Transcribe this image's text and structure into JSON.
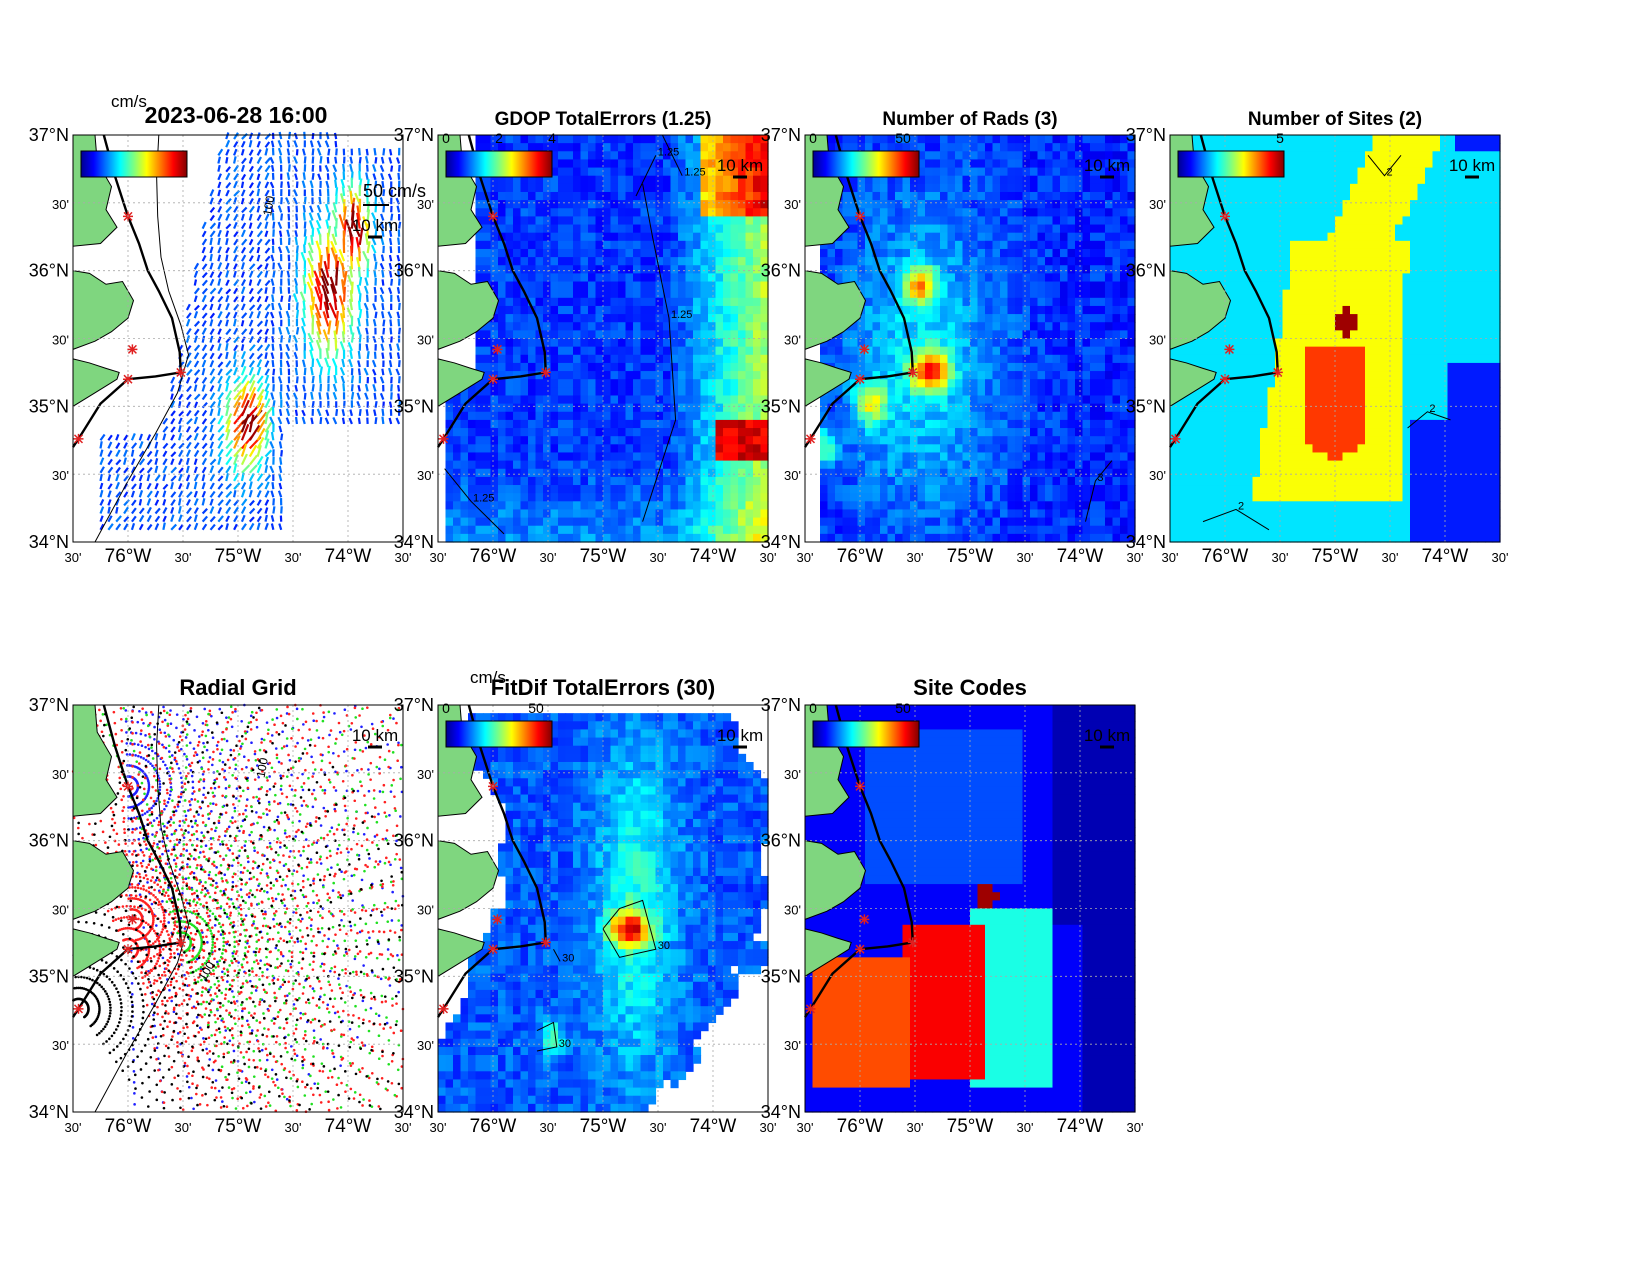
{
  "figure": {
    "timestamp": "2023-06-28 16:00",
    "unit_label": "cm/s",
    "vector_scale_label": "50 cm/s",
    "distance_scale_label": "10 km"
  },
  "axes_labels": {
    "lat": [
      "37°N",
      "30'",
      "36°N",
      "30'",
      "35°N",
      "30'",
      "34°N"
    ],
    "lon": [
      "30'",
      "76°W",
      "30'",
      "75°W",
      "30'",
      "74°W",
      "30'"
    ]
  },
  "panels": [
    {
      "id": "total-vectors",
      "title": "",
      "colorbar_ticks": [],
      "contours": [
        "100"
      ]
    },
    {
      "id": "gdop",
      "title": "GDOP TotalErrors (1.25)",
      "colorbar_ticks": [
        "0",
        "2",
        "4"
      ],
      "contours": [
        "1.25",
        "1.25",
        "1.25",
        "1.25"
      ]
    },
    {
      "id": "num-rads",
      "title": "Number of Rads (3)",
      "colorbar_ticks": [
        "0",
        "50"
      ],
      "contours": [
        "3"
      ]
    },
    {
      "id": "num-sites",
      "title": "Number of Sites (2)",
      "colorbar_ticks": [
        "5"
      ],
      "contours": [
        "2",
        "2",
        "2"
      ]
    },
    {
      "id": "radial-grid",
      "title": "Radial Grid",
      "colorbar_ticks": [],
      "contours": [
        "100",
        "100"
      ]
    },
    {
      "id": "fitdif",
      "title": "FitDif TotalErrors (30)",
      "unit": "cm/s",
      "colorbar_ticks": [
        "0",
        "50"
      ],
      "contours": [
        "30",
        "30",
        "30"
      ]
    },
    {
      "id": "site-codes",
      "title": "Site Codes",
      "colorbar_ticks": [
        "0",
        "50"
      ],
      "contours": []
    }
  ],
  "chart_data": {
    "type": "heatmap",
    "map_extent": {
      "lon": [
        -76.5,
        -73.5
      ],
      "lat": [
        34.0,
        37.0
      ]
    },
    "radar_sites_lonlat": [
      [
        -76.0,
        36.4
      ],
      [
        -75.96,
        35.42
      ],
      [
        -75.52,
        35.25
      ],
      [
        -76.0,
        35.2
      ],
      [
        -76.45,
        34.76
      ]
    ],
    "colormap": "jet",
    "colors": {
      "land": "#7fd67f",
      "coast": "#000000",
      "site_marker": "#e02020"
    },
    "grid": true
  }
}
